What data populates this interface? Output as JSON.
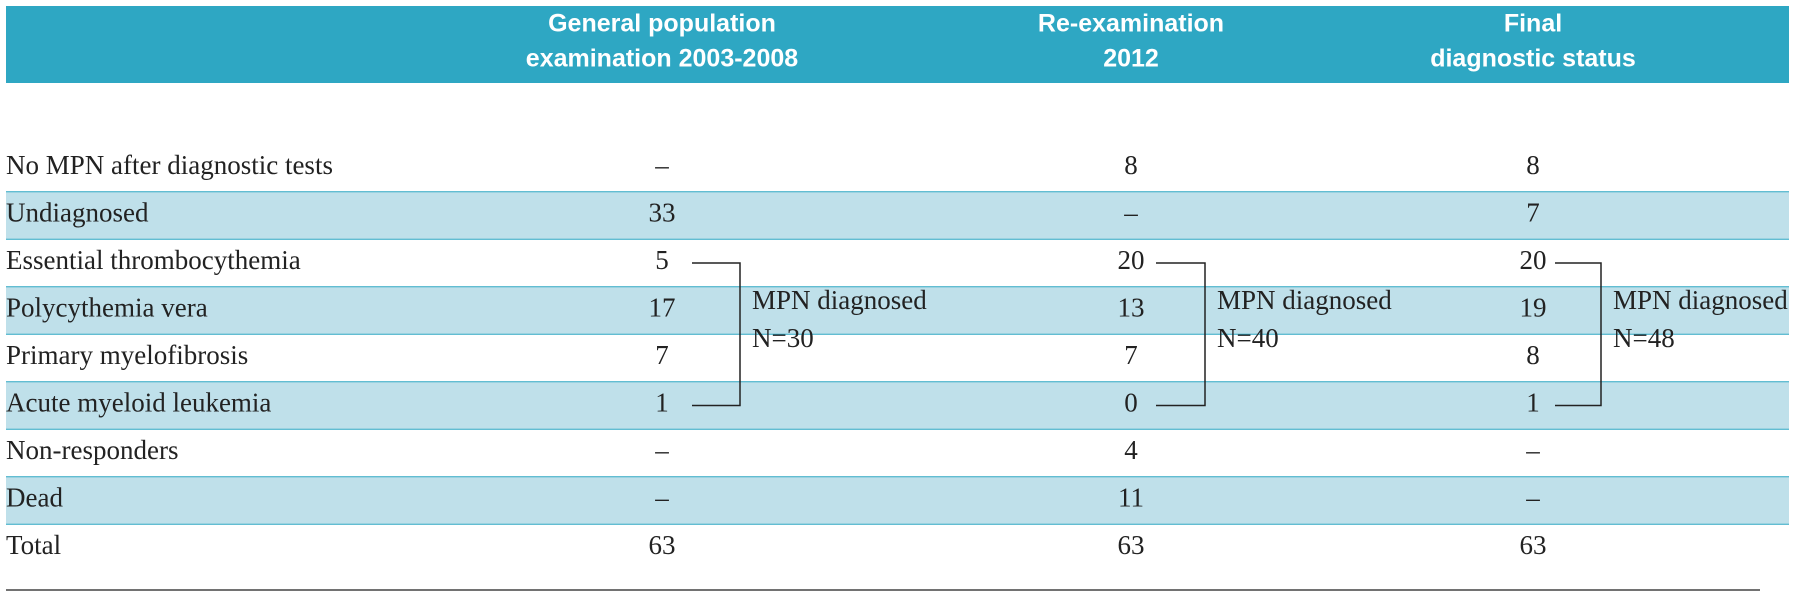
{
  "table": {
    "columns": [
      {
        "lines": [
          "General population",
          "examination 2003-2008"
        ]
      },
      {
        "lines": [
          "Re-examination",
          "2012"
        ]
      },
      {
        "lines": [
          "Final",
          "diagnostic status"
        ]
      }
    ],
    "rows": [
      {
        "label": "No MPN after diagnostic tests",
        "values": [
          "–",
          8,
          8
        ]
      },
      {
        "label": "Undiagnosed",
        "values": [
          33,
          "–",
          7
        ]
      },
      {
        "label": "Essential thrombocythemia",
        "values": [
          5,
          20,
          20
        ]
      },
      {
        "label": "Polycythemia vera",
        "values": [
          17,
          13,
          19
        ]
      },
      {
        "label": "Primary myelofibrosis",
        "values": [
          7,
          7,
          8
        ]
      },
      {
        "label": "Acute myeloid leukemia",
        "values": [
          1,
          0,
          1
        ]
      },
      {
        "label": "Non-responders",
        "values": [
          "–",
          4,
          "–"
        ]
      },
      {
        "label": "Dead",
        "values": [
          "–",
          11,
          "–"
        ]
      },
      {
        "label": "Total",
        "values": [
          63,
          63,
          63
        ]
      }
    ],
    "groups": [
      {
        "label": "MPN diagnosed",
        "n": "N=30"
      },
      {
        "label": "MPN diagnosed",
        "n": "N=40"
      },
      {
        "label": "MPN diagnosed",
        "n": "N=48"
      }
    ]
  }
}
